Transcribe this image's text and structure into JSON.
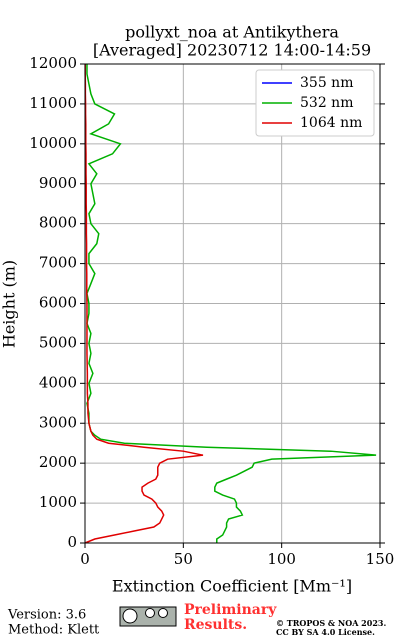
{
  "chart_data": {
    "type": "line",
    "title": "pollyxt_noa at Antikythera",
    "subtitle": "[Averaged] 20230712 14:00-14:59",
    "x_label": "Extinction Coefficient [Mm⁻¹]",
    "y_label": "Height (m)",
    "heights": [
      0,
      100,
      200,
      300,
      400,
      500,
      600,
      700,
      800,
      900,
      1000,
      1100,
      1200,
      1300,
      1400,
      1500,
      1600,
      1700,
      1800,
      1900,
      2000,
      2100,
      2200,
      2300,
      2400,
      2500,
      2600,
      2700,
      2800,
      3000,
      3250,
      3500,
      3750,
      4000,
      4250,
      4500,
      4750,
      5000,
      5250,
      5500,
      5750,
      6000,
      6250,
      6500,
      6750,
      7000,
      7250,
      7500,
      7750,
      8000,
      8250,
      8500,
      8750,
      9000,
      9250,
      9500,
      9750,
      10000,
      10250,
      10500,
      10750,
      11000,
      11250,
      11500,
      11750,
      12000
    ],
    "series": [
      {
        "name": "355 nm",
        "color": "#0000ff",
        "values": [
          null,
          null,
          null,
          null,
          null,
          null,
          null,
          null,
          null,
          null,
          null,
          null,
          null,
          null,
          null,
          null,
          null,
          null,
          null,
          null,
          null,
          null,
          null,
          null,
          null,
          null,
          null,
          null,
          null,
          null,
          null,
          null,
          null,
          null,
          null,
          null,
          null,
          null,
          null,
          null,
          null,
          null,
          null,
          null,
          null,
          null,
          null,
          null,
          null,
          null,
          null,
          null,
          null,
          null,
          null,
          null,
          null,
          null,
          null,
          null,
          null,
          null,
          null,
          null,
          null,
          null
        ]
      },
      {
        "name": "532 nm",
        "color": "#00b000",
        "values": [
          67,
          67,
          70,
          71,
          72,
          72,
          73,
          80,
          79,
          77,
          77,
          76,
          70,
          66,
          66,
          67,
          72,
          77,
          81,
          85,
          86,
          95,
          148,
          125,
          62,
          20,
          8,
          5,
          3,
          2,
          2,
          1,
          3,
          2,
          4,
          2,
          3,
          2,
          3,
          1,
          2,
          2,
          1,
          3,
          5,
          2,
          2,
          6,
          7,
          3,
          2,
          5,
          4,
          3,
          6,
          2,
          14,
          18,
          3,
          12,
          15,
          5,
          3,
          2,
          1,
          1
        ]
      },
      {
        "name": "1064 nm",
        "color": "#e00000",
        "values": [
          0,
          5,
          15,
          25,
          35,
          38,
          39,
          40,
          39,
          37,
          36,
          34,
          30,
          29,
          29,
          32,
          36,
          37,
          37,
          37,
          38,
          42,
          60,
          50,
          30,
          12,
          6,
          4,
          3,
          2,
          1.5,
          1.5,
          1.2,
          1.2,
          1.2,
          1.1,
          1,
          1,
          1,
          1,
          1,
          1,
          0.9,
          0.9,
          0.9,
          0.8,
          0.8,
          0.8,
          0.7,
          0.7,
          0.7,
          0.6,
          0.6,
          0.6,
          0.5,
          0.5,
          0.5,
          0.4,
          0.4,
          0.4,
          0.3,
          0.3,
          0.2,
          0.2,
          0.1,
          0.1
        ]
      }
    ],
    "xlim": [
      0,
      150
    ],
    "xticks": [
      0,
      50,
      100,
      150
    ],
    "ylim": [
      0,
      12000
    ],
    "yticks": [
      0,
      1000,
      2000,
      3000,
      4000,
      5000,
      6000,
      7000,
      8000,
      9000,
      10000,
      11000,
      12000
    ],
    "grid": true,
    "legend": "upper-right"
  },
  "footer": {
    "version": "Version: 3.6",
    "method": "Method: Klett",
    "preliminary": "Preliminary",
    "results": "Results.",
    "copyright": "© TROPOS & NOA 2023.",
    "license": "CC BY SA 4.0 License."
  }
}
